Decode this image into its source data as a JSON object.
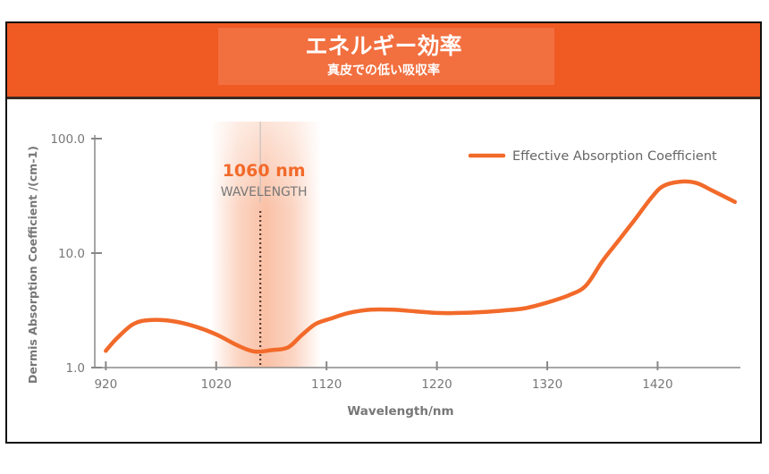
{
  "header": {
    "title": "エネルギー効率",
    "subtitle": "真皮での低い吸収率"
  },
  "colors": {
    "banner": "#f05a23",
    "curve": "#f26a2a",
    "highlight": "#f26a2a",
    "axis": "#888888",
    "label_gray": "#777777"
  },
  "chart_data": {
    "type": "line",
    "title": "",
    "xlabel": "Wavelength/nm",
    "ylabel": "Dermis Absorption Coefficient /(cm-1)",
    "xlim": [
      910,
      1495
    ],
    "ylim": [
      1.0,
      100.0
    ],
    "yscale": "log",
    "x_ticks": [
      "920",
      "1020",
      "1120",
      "1220",
      "1320",
      "1420"
    ],
    "y_ticks": [
      "1.0",
      "10.0",
      "100.0"
    ],
    "legend_position": "top-right",
    "grid": false,
    "series": [
      {
        "name": "Effective Absorption Coefficient",
        "x": [
          920,
          930,
          945,
          960,
          980,
          1000,
          1020,
          1040,
          1055,
          1070,
          1085,
          1097,
          1110,
          1125,
          1140,
          1160,
          1180,
          1200,
          1220,
          1240,
          1260,
          1280,
          1300,
          1320,
          1340,
          1355,
          1370,
          1385,
          1400,
          1415,
          1425,
          1440,
          1455,
          1470,
          1490
        ],
        "y": [
          1.4,
          1.8,
          2.4,
          2.6,
          2.55,
          2.3,
          1.95,
          1.55,
          1.38,
          1.42,
          1.5,
          1.9,
          2.4,
          2.7,
          3.0,
          3.2,
          3.2,
          3.1,
          3.0,
          3.0,
          3.05,
          3.15,
          3.3,
          3.7,
          4.3,
          5.2,
          8.5,
          13.0,
          20.0,
          31.0,
          38.5,
          42.0,
          41.0,
          35.0,
          28.0
        ]
      }
    ],
    "annotation": {
      "x": 1060,
      "value_label": "1060 nm",
      "caption": "WAVELENGTH",
      "band_x": [
        1015,
        1115
      ]
    }
  }
}
